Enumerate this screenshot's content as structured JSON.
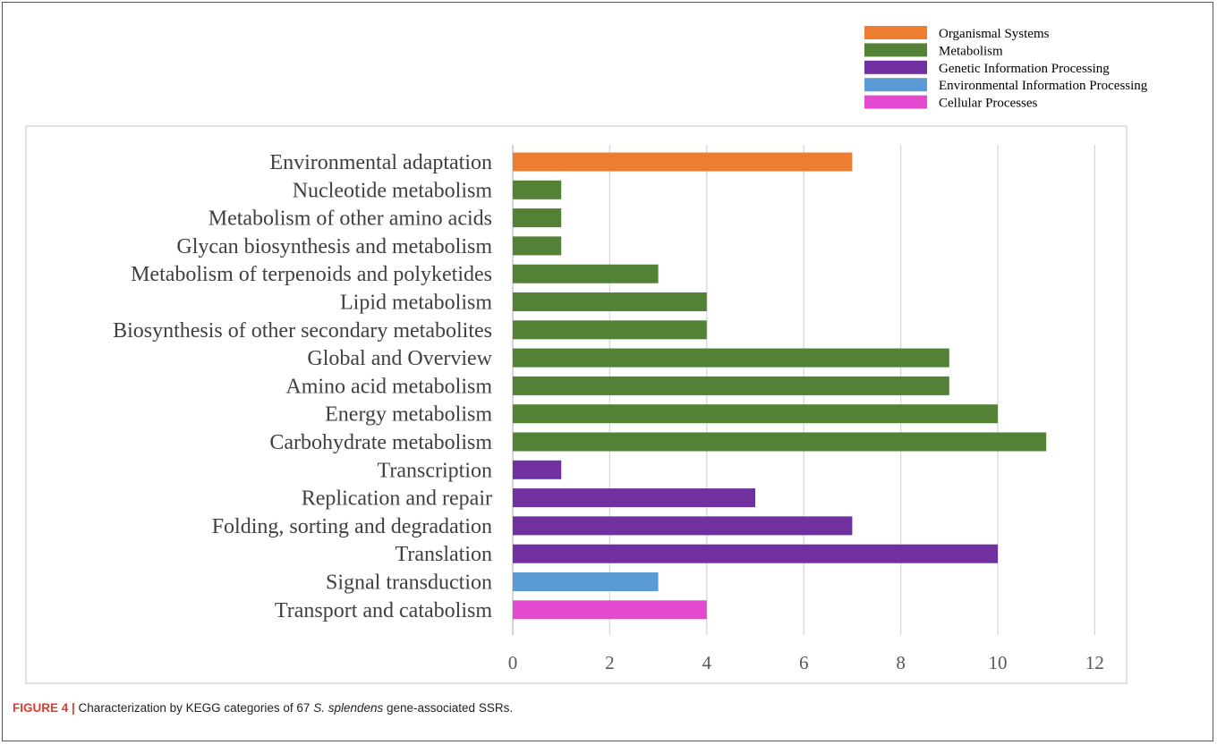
{
  "chart_data": {
    "type": "bar",
    "orientation": "horizontal",
    "title": "",
    "xlabel": "",
    "ylabel": "",
    "xlim": [
      0,
      12
    ],
    "xticks": [
      0,
      2,
      4,
      6,
      8,
      10,
      12
    ],
    "grid": true,
    "legend_placement": "top-right",
    "categories": [
      "Environmental adaptation",
      "Nucleotide metabolism",
      "Metabolism of other amino acids",
      "Glycan biosynthesis and metabolism",
      "Metabolism of terpenoids and polyketides",
      "Lipid metabolism",
      "Biosynthesis of other secondary metabolites",
      "Global and Overview",
      "Amino acid metabolism",
      "Energy metabolism",
      "Carbohydrate metabolism",
      "Transcription",
      "Replication and repair",
      "Folding, sorting and degradation",
      "Translation",
      "Signal transduction",
      "Transport and catabolism"
    ],
    "values": [
      7,
      1,
      1,
      1,
      3,
      4,
      4,
      9,
      9,
      10,
      11,
      1,
      5,
      7,
      10,
      3,
      4
    ],
    "groups": [
      0,
      1,
      1,
      1,
      1,
      1,
      1,
      1,
      1,
      1,
      1,
      2,
      2,
      2,
      2,
      3,
      4
    ],
    "legend": [
      {
        "name": "Organismal Systems",
        "color": "#ed7d31"
      },
      {
        "name": "Metabolism",
        "color": "#538135"
      },
      {
        "name": "Genetic Information Processing",
        "color": "#7030a0"
      },
      {
        "name": "Environmental Information Processing",
        "color": "#5b9bd5"
      },
      {
        "name": "Cellular Processes",
        "color": "#e34ad0"
      }
    ]
  },
  "caption": {
    "label": "FIGURE 4 |",
    "text_before": " Characterization by KEGG categories of 67 ",
    "species": "S. splendens",
    "text_after": " gene-associated SSRs."
  }
}
